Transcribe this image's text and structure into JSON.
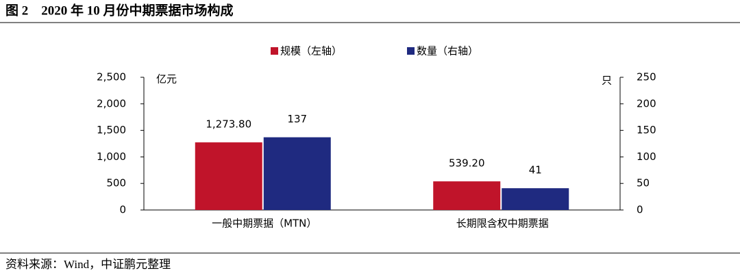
{
  "chart_data": {
    "type": "bar",
    "title": "图 2　2020 年 10 月份中期票据市场构成",
    "source": "资料来源：Wind，中证鹏元整理",
    "y_unit": "亿元",
    "y2_unit": "只",
    "categories": [
      "一般中期票据（MTN）",
      "长期限含权中期票据"
    ],
    "series": [
      {
        "name": "规模（左轴）",
        "color": "#c0142a",
        "values": [
          1273.8,
          539.2
        ],
        "value_labels": [
          "1,273.80",
          "539.20"
        ]
      },
      {
        "name": "数量（右轴）",
        "color": "#1f2a80",
        "values": [
          137,
          41
        ],
        "value_labels": [
          "137",
          "41"
        ],
        "axis": "y2"
      }
    ],
    "ylim": [
      0,
      2500
    ],
    "yticks": [
      0,
      500,
      {
        "value": 1000,
        "label": "1,000"
      },
      {
        "value": 1500,
        "label": "1,500"
      },
      {
        "value": 2000,
        "label": "2,000"
      },
      {
        "value": 2500,
        "label": "2,500"
      }
    ],
    "y2lim": [
      0,
      250
    ],
    "y2ticks": [
      0,
      50,
      100,
      150,
      200,
      250
    ],
    "legend": "top"
  }
}
